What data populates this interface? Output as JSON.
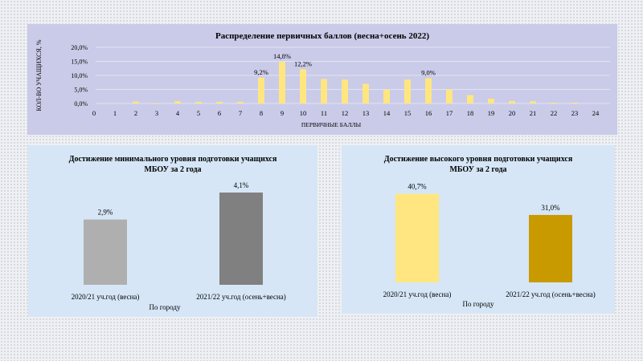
{
  "chart_data": [
    {
      "type": "bar",
      "title": "Распределение первичных баллов (весна+осень 2022)",
      "xlabel": "ПЕРВИЧНЫЕ БАЛЛЫ",
      "ylabel": "КОЛ-ВО УЧАЩИХСЯ, %",
      "categories": [
        "0",
        "1",
        "2",
        "3",
        "4",
        "5",
        "6",
        "7",
        "8",
        "9",
        "10",
        "11",
        "12",
        "13",
        "14",
        "15",
        "16",
        "17",
        "18",
        "19",
        "20",
        "21",
        "22",
        "23",
        "24"
      ],
      "values": [
        0,
        0,
        0.7,
        0.2,
        0.8,
        0.6,
        0.6,
        0.6,
        9.2,
        14.8,
        12.2,
        8.7,
        8.5,
        7.0,
        5.0,
        8.5,
        9.0,
        5.0,
        3.0,
        1.7,
        0.9,
        0.8,
        0.3,
        0.3,
        0
      ],
      "data_labels": {
        "8": "9,2%",
        "9": "14,8%",
        "10": "12,2%",
        "16": "9,0%"
      },
      "yticks": [
        "0,0%",
        "5,0%",
        "10,0%",
        "15,0%",
        "20,0%"
      ],
      "ylim": [
        0,
        20
      ],
      "grid": true,
      "color": "#ffe680"
    },
    {
      "type": "bar",
      "title": "Достижение минимального уровня подготовки учащихся МБОУ за 2 года",
      "xlabel": "По городу",
      "categories": [
        "2020/21 уч.год (весна)",
        "2021/22 уч.год (осень+весна)"
      ],
      "values": [
        2.9,
        4.1
      ],
      "labels": [
        "2,9%",
        "4,1%"
      ],
      "colors": [
        "#afafaf",
        "#808080"
      ],
      "ylim": [
        0,
        4.6
      ]
    },
    {
      "type": "bar",
      "title": "Достижение высокого уровня подготовки учащихся МБОУ за 2 года",
      "xlabel": "По городу",
      "categories": [
        "2020/21 уч.год (весна)",
        "2021/22 уч.год (осень+весна)"
      ],
      "values": [
        40.7,
        31.0
      ],
      "labels": [
        "40,7%",
        "31,0%"
      ],
      "colors": [
        "#ffe680",
        "#c99a00"
      ],
      "ylim": [
        0,
        45
      ]
    }
  ]
}
